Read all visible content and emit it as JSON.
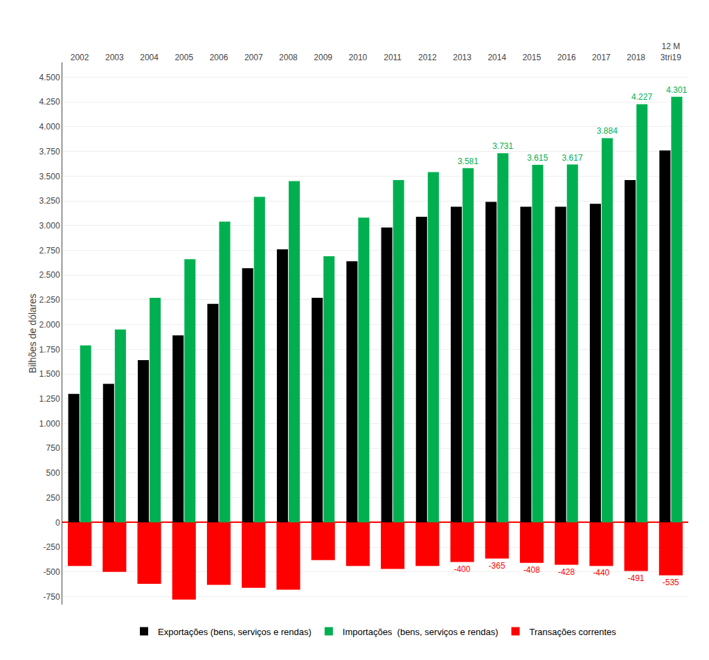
{
  "chart_data": {
    "type": "bar",
    "categories": [
      "2002",
      "2003",
      "2004",
      "2005",
      "2006",
      "2007",
      "2008",
      "2009",
      "2010",
      "2011",
      "2012",
      "2013",
      "2014",
      "2015",
      "2016",
      "2017",
      "2018",
      "12 M\n3tri19"
    ],
    "series": [
      {
        "name": "Exportações (bens, serviços e rendas)",
        "color": "#000000",
        "values": [
          1300,
          1400,
          1640,
          1890,
          2210,
          2570,
          2760,
          2270,
          2640,
          2980,
          3090,
          3190,
          3240,
          3190,
          3190,
          3220,
          3460,
          3760
        ]
      },
      {
        "name": "Importações  (bens, serviços e rendas)",
        "color": "#00b050",
        "values": [
          1790,
          1950,
          2270,
          2660,
          3040,
          3290,
          3450,
          2690,
          3080,
          3460,
          3540,
          3581,
          3731,
          3615,
          3617,
          3884,
          4227,
          4301
        ],
        "data_labels": true,
        "value_labels": [
          null,
          null,
          null,
          null,
          null,
          null,
          null,
          null,
          null,
          null,
          null,
          "3.581",
          "3.731",
          "3.615",
          "3.617",
          "3.884",
          "4.227",
          "4.301"
        ]
      },
      {
        "name": "Transações correntes",
        "color": "#ff0000",
        "values": [
          -440,
          -500,
          -620,
          -780,
          -630,
          -660,
          -680,
          -380,
          -440,
          -470,
          -440,
          -400,
          -365,
          -408,
          -428,
          -440,
          -491,
          -535
        ],
        "data_labels": true,
        "value_labels": [
          null,
          null,
          null,
          null,
          null,
          null,
          null,
          null,
          null,
          null,
          null,
          "-400",
          "-365",
          "-408",
          "-428",
          "-440",
          "-491",
          "-535"
        ]
      }
    ],
    "ylabel": "Bilhões de dólares",
    "ylim": [
      -830,
      4650
    ],
    "yticks": [
      -750,
      -500,
      -250,
      0,
      250,
      500,
      750,
      {
        "value": 1000,
        "label": "1.000"
      },
      {
        "value": 1250,
        "label": "1.250"
      },
      {
        "value": 1500,
        "label": "1.500"
      },
      {
        "value": 1750,
        "label": "1.750"
      },
      {
        "value": 2000,
        "label": "2.000"
      },
      {
        "value": 2250,
        "label": "2.250"
      },
      {
        "value": 2500,
        "label": "2.500"
      },
      {
        "value": 2750,
        "label": "2.750"
      },
      {
        "value": 3000,
        "label": "3.000"
      },
      {
        "value": 3250,
        "label": "3.250"
      },
      {
        "value": 3500,
        "label": "3.500"
      },
      {
        "value": 3750,
        "label": "3.750"
      },
      {
        "value": 4000,
        "label": "4.000"
      },
      {
        "value": 4250,
        "label": "4.250"
      },
      {
        "value": 4500,
        "label": "4.500"
      }
    ],
    "grid": true,
    "legend": "bottom"
  }
}
